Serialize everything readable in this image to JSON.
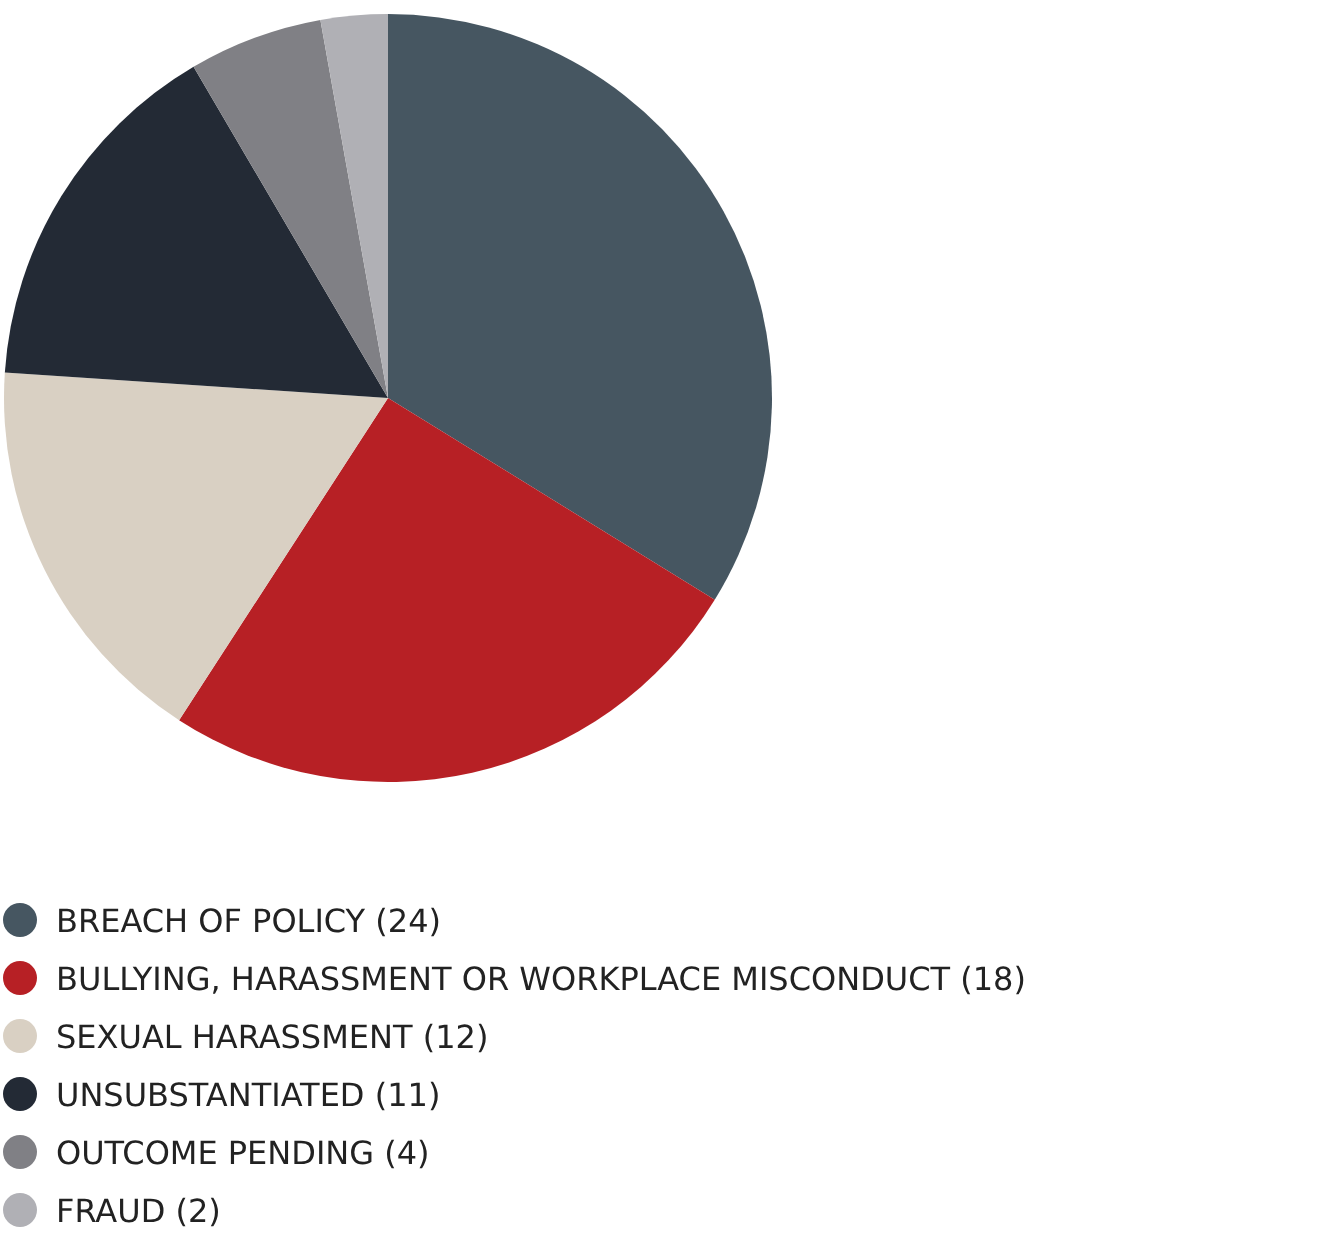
{
  "chart_data": {
    "type": "pie",
    "categories": [
      "BREACH OF POLICY",
      "BULLYING, HARASSMENT OR WORKPLACE MISCONDUCT",
      "SEXUAL HARASSMENT",
      "UNSUBSTANTIATED",
      "OUTCOME PENDING",
      "FRAUD"
    ],
    "values": [
      24,
      18,
      12,
      11,
      4,
      2
    ],
    "value_labels": [
      "(24)",
      "(18)",
      "(12)",
      "(11)",
      "(4)",
      "(2)"
    ],
    "colors": [
      "#465661",
      "#b72025",
      "#d9d0c3",
      "#232a35",
      "#808085",
      "#b0b0b5"
    ],
    "legend": "bottom"
  }
}
